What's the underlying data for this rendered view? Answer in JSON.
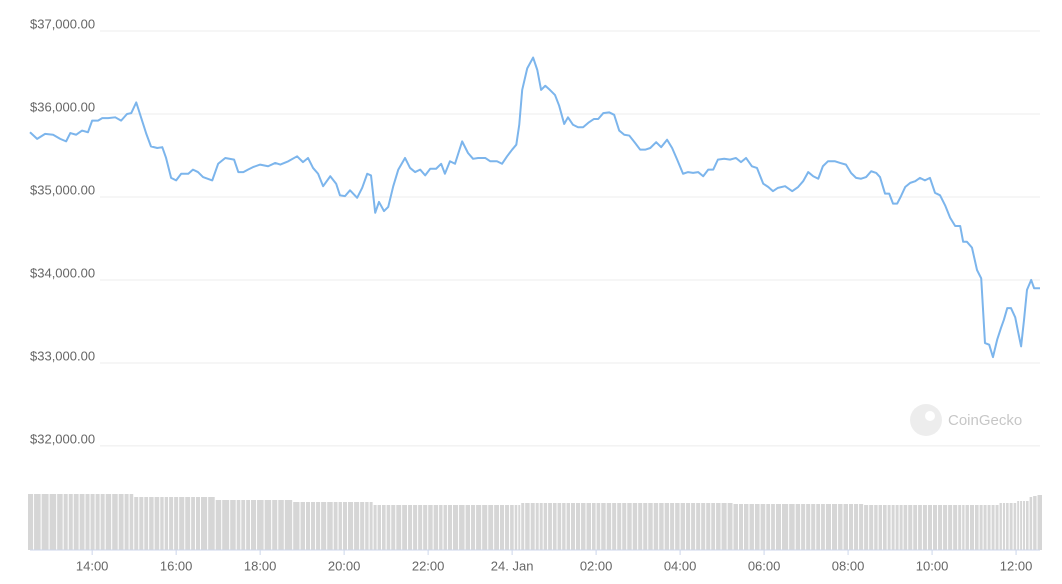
{
  "chart_data": {
    "type": "line",
    "color": "#7cb5ec",
    "x": [
      12.52,
      12.69,
      12.88,
      13.07,
      13.24,
      13.38,
      13.48,
      13.62,
      13.76,
      13.9,
      14.0,
      14.14,
      14.24,
      14.38,
      14.55,
      14.69,
      14.83,
      14.93,
      15.05,
      15.17,
      15.29,
      15.4,
      15.55,
      15.67,
      15.76,
      15.88,
      16.0,
      16.12,
      16.29,
      16.4,
      16.52,
      16.64,
      16.86,
      17.0,
      17.17,
      17.38,
      17.48,
      17.6,
      17.71,
      17.83,
      18.0,
      18.19,
      18.36,
      18.48,
      18.67,
      18.88,
      19.02,
      19.14,
      19.26,
      19.38,
      19.5,
      19.67,
      19.81,
      19.9,
      20.02,
      20.14,
      20.31,
      20.43,
      20.55,
      20.64,
      20.74,
      20.83,
      20.95,
      21.05,
      21.17,
      21.29,
      21.45,
      21.57,
      21.69,
      21.81,
      21.93,
      22.05,
      22.19,
      22.31,
      22.4,
      22.52,
      22.64,
      22.81,
      22.95,
      23.07,
      23.19,
      23.36,
      23.48,
      23.64,
      23.76,
      23.88,
      24.0,
      24.1,
      24.17,
      24.24,
      24.36,
      24.5,
      24.6,
      24.69,
      24.79,
      24.9,
      25.02,
      25.12,
      25.24,
      25.33,
      25.45,
      25.57,
      25.69,
      25.83,
      25.95,
      26.05,
      26.17,
      26.31,
      26.43,
      26.55,
      26.67,
      26.79,
      26.93,
      27.05,
      27.17,
      27.29,
      27.43,
      27.55,
      27.69,
      27.81,
      27.93,
      28.07,
      28.19,
      28.31,
      28.43,
      28.55,
      28.67,
      28.79,
      28.9,
      29.05,
      29.19,
      29.33,
      29.45,
      29.57,
      29.71,
      29.83,
      29.98,
      30.1,
      30.21,
      30.33,
      30.5,
      30.67,
      30.81,
      30.93,
      31.05,
      31.17,
      31.29,
      31.4,
      31.52,
      31.69,
      31.81,
      31.95,
      32.07,
      32.19,
      32.31,
      32.43,
      32.55,
      32.67,
      32.76,
      32.88,
      32.98,
      33.07,
      33.17,
      33.26,
      33.36,
      33.48,
      33.6,
      33.71,
      33.83,
      33.95,
      34.07,
      34.19,
      34.31,
      34.43,
      34.55,
      34.67,
      34.74,
      34.83,
      34.95,
      35.07,
      35.17,
      35.26,
      35.36,
      35.45,
      35.55,
      35.64,
      35.71,
      35.79,
      35.88,
      35.98,
      36.05,
      36.12,
      36.19,
      36.26,
      36.36,
      36.43,
      36.57
    ],
    "values": [
      35780,
      35700,
      35760,
      35750,
      35700,
      35670,
      35770,
      35750,
      35800,
      35780,
      35920,
      35920,
      35950,
      35950,
      35960,
      35920,
      36000,
      36010,
      36140,
      35950,
      35760,
      35610,
      35590,
      35600,
      35470,
      35230,
      35200,
      35280,
      35280,
      35330,
      35300,
      35240,
      35200,
      35400,
      35470,
      35450,
      35300,
      35300,
      35330,
      35360,
      35390,
      35370,
      35410,
      35390,
      35430,
      35490,
      35420,
      35470,
      35350,
      35280,
      35130,
      35250,
      35160,
      35020,
      35010,
      35080,
      34990,
      35110,
      35280,
      35260,
      34810,
      34940,
      34830,
      34880,
      35130,
      35330,
      35470,
      35350,
      35300,
      35330,
      35260,
      35340,
      35340,
      35400,
      35280,
      35430,
      35400,
      35670,
      35530,
      35460,
      35470,
      35470,
      35430,
      35430,
      35400,
      35490,
      35570,
      35630,
      35870,
      36290,
      36550,
      36680,
      36530,
      36290,
      36340,
      36290,
      36230,
      36100,
      35880,
      35960,
      35870,
      35840,
      35840,
      35900,
      35940,
      35940,
      36010,
      36020,
      35990,
      35800,
      35750,
      35740,
      35650,
      35570,
      35570,
      35590,
      35660,
      35600,
      35690,
      35590,
      35450,
      35280,
      35300,
      35290,
      35300,
      35250,
      35330,
      35330,
      35450,
      35460,
      35450,
      35470,
      35420,
      35470,
      35370,
      35350,
      35160,
      35120,
      35070,
      35110,
      35130,
      35070,
      35120,
      35190,
      35300,
      35250,
      35220,
      35370,
      35430,
      35430,
      35410,
      35390,
      35290,
      35230,
      35220,
      35240,
      35310,
      35290,
      35240,
      35040,
      35040,
      34920,
      34920,
      35010,
      35120,
      35170,
      35190,
      35230,
      35200,
      35230,
      35050,
      35020,
      34900,
      34750,
      34650,
      34650,
      34460,
      34460,
      34390,
      34120,
      34020,
      33240,
      33220,
      33070,
      33280,
      33420,
      33520,
      33660,
      33660,
      33550,
      33370,
      33200,
      33520,
      33880,
      34000,
      33900,
      33900
    ],
    "volume": {
      "color": "#d6d6d6",
      "values": [
        28,
        28,
        28,
        28,
        28,
        28,
        28,
        28,
        28,
        28,
        28,
        28,
        28,
        28,
        28,
        28,
        28,
        28,
        26.5,
        26.5,
        26.5,
        26.5,
        26.5,
        26.5,
        26.5,
        26.5,
        26.5,
        26.5,
        26.5,
        26.5,
        26.5,
        26.5,
        26.5,
        25,
        25,
        25,
        25,
        25,
        25,
        25,
        25,
        25,
        25,
        25,
        25,
        24,
        24,
        24,
        24,
        24,
        24,
        24,
        24,
        24,
        24,
        24,
        24,
        24,
        24,
        24,
        22.5,
        22.5,
        22.5,
        22.5,
        22.5,
        22.5,
        22.5,
        22.5,
        22.5,
        22.5,
        22.5,
        22.5,
        22.5,
        22.5,
        22.5,
        22.5,
        22.5,
        22.5,
        22.5,
        22.5,
        22.5,
        22.5,
        22.5,
        22.5,
        22.5,
        22.5,
        22.5,
        22.5,
        22.5,
        23.5,
        23.5,
        23.5,
        23.5,
        23.5,
        23.5,
        23.5,
        23.5,
        23.5,
        23.5,
        23.5,
        23.5,
        23.5,
        23.5,
        23.5,
        23.5,
        23.5,
        23.5,
        23.5,
        23.5,
        23.5,
        23.5,
        23.5,
        23.5,
        23.5,
        23.5,
        23.5,
        23.5,
        23.5,
        23.5,
        23.5,
        23.5,
        23.5,
        23.5,
        23.5,
        23.5,
        23.5,
        23.5,
        23.5,
        23.5,
        23.5,
        23.5,
        23,
        23,
        23,
        23,
        23,
        23,
        23,
        23,
        23,
        23,
        23,
        23,
        23,
        23,
        23,
        23,
        23,
        23,
        23,
        23,
        23,
        23,
        23,
        23,
        22.5,
        22.5,
        22.5,
        22.5,
        22.5,
        22.5,
        22.5,
        22.5,
        22.5,
        22.5,
        22.5,
        22.5,
        22.5,
        22.5,
        22.5,
        22.5,
        22.5,
        22.5,
        22.5,
        22.5,
        22.5,
        22.5,
        22.5,
        22.5,
        22.5,
        22.5,
        22.5,
        22.5,
        22.5,
        22.5,
        23.5,
        23.5,
        23.5,
        23.5,
        23.5,
        24.5,
        24.5,
        24.5,
        24.5,
        26.5,
        27,
        27.5
      ]
    },
    "volume_ylim": [
      0,
      40
    ],
    "xlim": [
      12.52,
      36.57
    ],
    "xticks": [
      {
        "value": 14,
        "label": "14:00"
      },
      {
        "value": 16,
        "label": "16:00"
      },
      {
        "value": 18,
        "label": "18:00"
      },
      {
        "value": 20,
        "label": "20:00"
      },
      {
        "value": 22,
        "label": "22:00"
      },
      {
        "value": 24,
        "label": "24. Jan"
      },
      {
        "value": 26,
        "label": "02:00"
      },
      {
        "value": 28,
        "label": "04:00"
      },
      {
        "value": 30,
        "label": "06:00"
      },
      {
        "value": 32,
        "label": "08:00"
      },
      {
        "value": 34,
        "label": "10:00"
      },
      {
        "value": 36,
        "label": "12:00"
      }
    ],
    "ylim": [
      30746,
      37000
    ],
    "yticks": [
      {
        "value": 32000,
        "label": "$32,000.00"
      },
      {
        "value": 33000,
        "label": "$33,000.00"
      },
      {
        "value": 34000,
        "label": "$34,000.00"
      },
      {
        "value": 35000,
        "label": "$35,000.00"
      },
      {
        "value": 36000,
        "label": "$36,000.00"
      },
      {
        "value": 37000,
        "label": "$37,000.00"
      }
    ],
    "grid": true,
    "watermark": "CoinGecko"
  }
}
